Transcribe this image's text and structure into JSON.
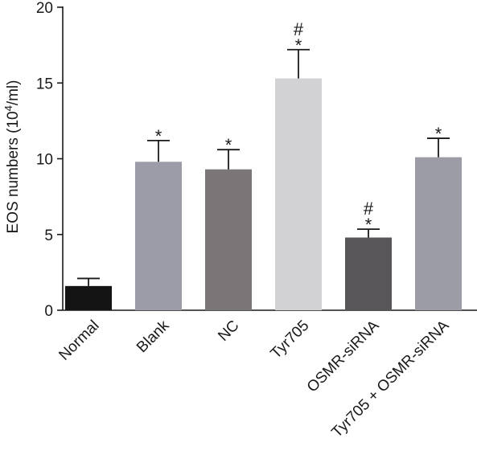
{
  "chart_data": {
    "type": "bar",
    "title": "",
    "xlabel": "",
    "ylabel": "EOS numbers (10",
    "ylabel_sup": "4",
    "ylabel_suffix": "/ml)",
    "ylim": [
      0,
      20
    ],
    "yticks": [
      "0",
      "5",
      "10",
      "15",
      "20"
    ],
    "grid": false,
    "legend": "none",
    "categories": [
      "Normal",
      "Blank",
      "NC",
      "Tyr705",
      "OSMR-siRNA",
      "Tyr705 + OSMR-siRNA"
    ],
    "values": [
      1.6,
      9.8,
      9.3,
      15.3,
      4.8,
      10.1
    ],
    "errors": [
      0.5,
      1.4,
      1.3,
      1.9,
      0.55,
      1.25
    ],
    "annotations": [
      [],
      [
        "*"
      ],
      [
        "*"
      ],
      [
        "*",
        "#"
      ],
      [
        "*",
        "#"
      ],
      [
        "*"
      ]
    ],
    "colors": [
      "#141414",
      "#9c9ca8",
      "#7a7678",
      "#d2d2d4",
      "#585658",
      "#9c9ca6"
    ]
  }
}
